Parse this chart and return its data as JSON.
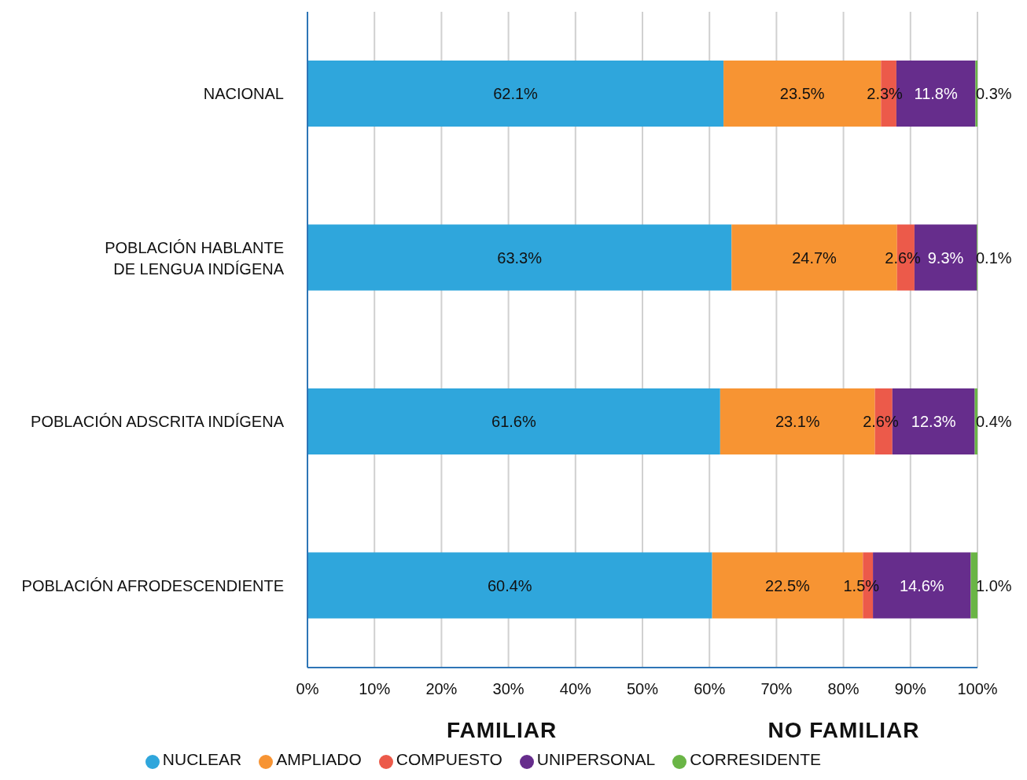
{
  "chart_data": {
    "type": "bar",
    "orientation": "horizontal",
    "stacked": true,
    "categories": [
      "NACIONAL",
      "POBLACIÓN HABLANTE DE LENGUA INDÍGENA",
      "POBLACIÓN ADSCRITA INDÍGENA",
      "POBLACIÓN AFRODESCENDIENTE"
    ],
    "series": [
      {
        "name": "NUCLEAR",
        "color": "#2fa6dc",
        "values": [
          62.1,
          63.3,
          61.6,
          60.4
        ],
        "value_labels": [
          "62.1%",
          "63.3%",
          "61.6%",
          "60.4%"
        ]
      },
      {
        "name": "AMPLIADO",
        "color": "#f79433",
        "values": [
          23.5,
          24.7,
          23.1,
          22.5
        ],
        "value_labels": [
          "23.5%",
          "24.7%",
          "23.1%",
          "22.5%"
        ]
      },
      {
        "name": "COMPUESTO",
        "color": "#ec5a4a",
        "values": [
          2.3,
          2.6,
          2.6,
          1.5
        ],
        "value_labels": [
          "2.3%",
          "2.6%",
          "2.6%",
          "1.5%"
        ]
      },
      {
        "name": "UNIPERSONAL",
        "color": "#662d8c",
        "values": [
          11.8,
          9.3,
          12.3,
          14.6
        ],
        "value_labels": [
          "11.8%",
          "9.3%",
          "12.3%",
          "14.6%"
        ]
      },
      {
        "name": "CORRESIDENTE",
        "color": "#6ab546",
        "values": [
          0.3,
          0.1,
          0.4,
          1.0
        ],
        "value_labels": [
          "0.3%",
          "0.1%",
          "0.4%",
          "1.0%"
        ]
      }
    ],
    "xlim": [
      0,
      100
    ],
    "xticks": [
      {
        "value": 0,
        "label": "0%"
      },
      {
        "value": 10,
        "label": "10%"
      },
      {
        "value": 20,
        "label": "20%"
      },
      {
        "value": 30,
        "label": "30%"
      },
      {
        "value": 40,
        "label": "40%"
      },
      {
        "value": 50,
        "label": "50%"
      },
      {
        "value": 60,
        "label": "60%"
      },
      {
        "value": 70,
        "label": "70%"
      },
      {
        "value": 80,
        "label": "80%"
      },
      {
        "value": 90,
        "label": "90%"
      },
      {
        "value": 100,
        "label": "100%"
      }
    ],
    "grid": "x",
    "legend": "bottom",
    "annotations": [
      "FAMILIAR",
      "NO FAMILIAR"
    ]
  }
}
